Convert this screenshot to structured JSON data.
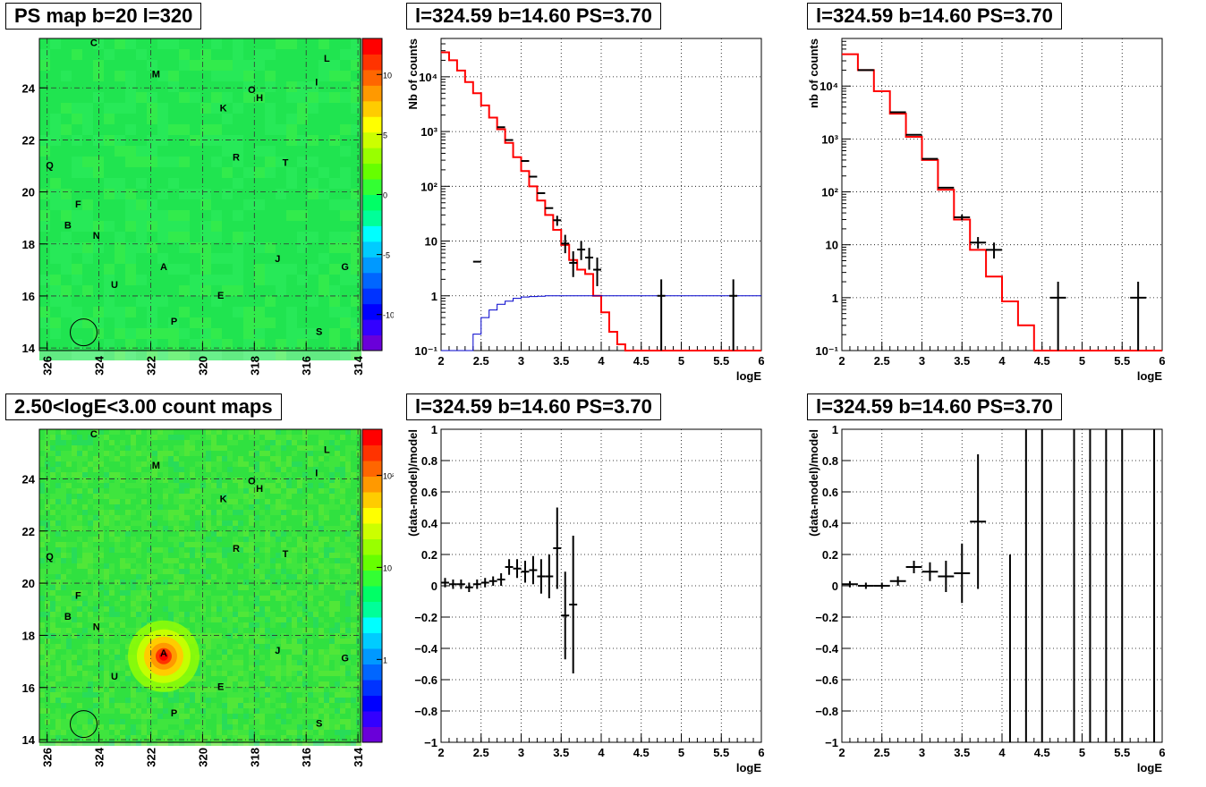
{
  "maps": [
    {
      "title": "PS map b=20 l=320",
      "type": "heatmap",
      "x_ticks": [
        "326",
        "324",
        "322",
        "320",
        "318",
        "316",
        "314"
      ],
      "y_ticks": [
        "14",
        "16",
        "18",
        "20",
        "22",
        "24"
      ],
      "colorbar_ticks": [
        {
          "label": "10",
          "value": 10
        },
        {
          "label": "5",
          "value": 5
        },
        {
          "label": "0",
          "value": 0
        },
        {
          "label": "-5",
          "value": -5
        },
        {
          "label": "-10",
          "value": -10
        }
      ],
      "colorbar_range": [
        -13,
        13
      ],
      "source_labels": [
        {
          "text": "C",
          "l": 324.2,
          "b": 25.6
        },
        {
          "text": "M",
          "l": 321.8,
          "b": 24.4
        },
        {
          "text": "L",
          "l": 315.2,
          "b": 25.0
        },
        {
          "text": "I",
          "l": 315.6,
          "b": 24.1
        },
        {
          "text": "O",
          "l": 318.1,
          "b": 23.8
        },
        {
          "text": "H",
          "l": 317.8,
          "b": 23.5
        },
        {
          "text": "K",
          "l": 319.2,
          "b": 23.1
        },
        {
          "text": "R",
          "l": 318.7,
          "b": 21.2
        },
        {
          "text": "T",
          "l": 316.8,
          "b": 21.0
        },
        {
          "text": "Q",
          "l": 325.9,
          "b": 20.9
        },
        {
          "text": "F",
          "l": 324.8,
          "b": 19.4
        },
        {
          "text": "B",
          "l": 325.2,
          "b": 18.6
        },
        {
          "text": "N",
          "l": 324.1,
          "b": 18.2
        },
        {
          "text": "J",
          "l": 317.1,
          "b": 17.3
        },
        {
          "text": "A",
          "l": 321.5,
          "b": 17.0
        },
        {
          "text": "G",
          "l": 314.5,
          "b": 17.0
        },
        {
          "text": "U",
          "l": 323.4,
          "b": 16.3
        },
        {
          "text": "E",
          "l": 319.3,
          "b": 15.9
        },
        {
          "text": "P",
          "l": 321.1,
          "b": 14.9
        },
        {
          "text": "S",
          "l": 315.5,
          "b": 14.5
        }
      ],
      "circle": {
        "l": 324.59,
        "b": 14.6
      },
      "hotspot": null
    },
    {
      "title": "2.50<logE<3.00 count maps",
      "type": "heatmap",
      "x_ticks": [
        "326",
        "324",
        "322",
        "320",
        "318",
        "316",
        "314"
      ],
      "y_ticks": [
        "14",
        "16",
        "18",
        "20",
        "22",
        "24"
      ],
      "colorbar_ticks": [
        {
          "label": "10²",
          "value": 2
        },
        {
          "label": "10",
          "value": 1
        },
        {
          "label": "1",
          "value": 0
        }
      ],
      "colorbar_range": [
        -0.9,
        2.5
      ],
      "source_labels": [
        {
          "text": "C",
          "l": 324.2,
          "b": 25.6
        },
        {
          "text": "M",
          "l": 321.8,
          "b": 24.4
        },
        {
          "text": "L",
          "l": 315.2,
          "b": 25.0
        },
        {
          "text": "I",
          "l": 315.6,
          "b": 24.1
        },
        {
          "text": "O",
          "l": 318.1,
          "b": 23.8
        },
        {
          "text": "H",
          "l": 317.8,
          "b": 23.5
        },
        {
          "text": "K",
          "l": 319.2,
          "b": 23.1
        },
        {
          "text": "R",
          "l": 318.7,
          "b": 21.2
        },
        {
          "text": "T",
          "l": 316.8,
          "b": 21.0
        },
        {
          "text": "Q",
          "l": 325.9,
          "b": 20.9
        },
        {
          "text": "F",
          "l": 324.8,
          "b": 19.4
        },
        {
          "text": "B",
          "l": 325.2,
          "b": 18.6
        },
        {
          "text": "N",
          "l": 324.1,
          "b": 18.2
        },
        {
          "text": "J",
          "l": 317.1,
          "b": 17.3
        },
        {
          "text": "A",
          "l": 321.5,
          "b": 17.2
        },
        {
          "text": "G",
          "l": 314.5,
          "b": 17.0
        },
        {
          "text": "U",
          "l": 323.4,
          "b": 16.3
        },
        {
          "text": "E",
          "l": 319.3,
          "b": 15.9
        },
        {
          "text": "P",
          "l": 321.1,
          "b": 14.9
        },
        {
          "text": "S",
          "l": 315.5,
          "b": 14.5
        }
      ],
      "circle": {
        "l": 324.59,
        "b": 14.6
      },
      "hotspot": {
        "l": 321.5,
        "b": 17.2
      }
    }
  ],
  "chart_data": [
    {
      "type": "line",
      "title": "l=324.59 b=14.60 PS=3.70",
      "xlabel": "logE",
      "ylabel": "Nb of counts",
      "log_y": true,
      "xlim": [
        2,
        6
      ],
      "ylim_exp": [
        -1,
        4.7
      ],
      "x_ticks": [
        "2",
        "2.5",
        "3",
        "3.5",
        "4",
        "4.5",
        "5",
        "5.5",
        "6"
      ],
      "y_ticks": [
        {
          "label": "10⁻¹",
          "value": 0.1
        },
        {
          "label": "1",
          "value": 1
        },
        {
          "label": "10",
          "value": 10
        },
        {
          "label": "10²",
          "value": 100
        },
        {
          "label": "10³",
          "value": 1000
        },
        {
          "label": "10⁴",
          "value": 10000
        }
      ],
      "series": [
        {
          "color": "#ff0000",
          "kind": "step",
          "edges": [
            2.0,
            2.1,
            2.2,
            2.3,
            2.4,
            2.5,
            2.6,
            2.7,
            2.8,
            2.9,
            3.0,
            3.1,
            3.2,
            3.3,
            3.4,
            3.5,
            3.6,
            3.7,
            3.8,
            3.9,
            4.0,
            4.1,
            4.2,
            4.3,
            6.0
          ],
          "values": [
            28000,
            20000,
            13000,
            8000,
            5000,
            3000,
            1800,
            1100,
            620,
            340,
            190,
            100,
            55,
            30,
            16,
            8.5,
            4.5,
            3.0,
            2.5,
            1.0,
            0.5,
            0.22,
            0.13,
            0.1
          ]
        },
        {
          "color": "#0000cc",
          "kind": "step",
          "edges": [
            2.0,
            2.2,
            2.3,
            2.4,
            2.5,
            2.6,
            2.7,
            2.8,
            2.9,
            3.0,
            3.1,
            3.2,
            3.3,
            6.0
          ],
          "values": [
            0.1,
            0.1,
            0.1,
            0.2,
            0.4,
            0.55,
            0.7,
            0.8,
            0.9,
            0.95,
            0.97,
            0.98,
            1.0
          ]
        }
      ],
      "points": [
        {
          "x": 2.45,
          "y": 4.2,
          "xerr": 0.05,
          "yerr_lo": 0,
          "yerr_hi": 0
        },
        {
          "x": 2.75,
          "y": 1200,
          "xerr": 0.05,
          "yerr_lo": 0,
          "yerr_hi": 0
        },
        {
          "x": 2.85,
          "y": 700,
          "xerr": 0.05,
          "yerr_lo": 0,
          "yerr_hi": 0
        },
        {
          "x": 3.05,
          "y": 290,
          "xerr": 0.05,
          "yerr_lo": 0,
          "yerr_hi": 0
        },
        {
          "x": 3.15,
          "y": 150,
          "xerr": 0.05,
          "yerr_lo": 0,
          "yerr_hi": 0
        },
        {
          "x": 3.25,
          "y": 75,
          "xerr": 0.05,
          "yerr_lo": 0,
          "yerr_hi": 0
        },
        {
          "x": 3.35,
          "y": 40,
          "xerr": 0.05,
          "yerr_lo": 0,
          "yerr_hi": 0
        },
        {
          "x": 3.45,
          "y": 24,
          "xerr": 0.05,
          "yerr_lo": 5,
          "yerr_hi": 5
        },
        {
          "x": 3.55,
          "y": 9,
          "xerr": 0.05,
          "yerr_lo": 3,
          "yerr_hi": 4
        },
        {
          "x": 3.65,
          "y": 4,
          "xerr": 0.05,
          "yerr_lo": 1.8,
          "yerr_hi": 2.5
        },
        {
          "x": 3.75,
          "y": 7,
          "xerr": 0.05,
          "yerr_lo": 2.5,
          "yerr_hi": 3
        },
        {
          "x": 3.85,
          "y": 5,
          "xerr": 0.05,
          "yerr_lo": 2,
          "yerr_hi": 2.5
        },
        {
          "x": 3.95,
          "y": 3,
          "xerr": 0.05,
          "yerr_lo": 1.5,
          "yerr_hi": 2
        },
        {
          "x": 4.75,
          "y": 1,
          "xerr": 0.05,
          "yerr_lo": 0.9,
          "yerr_hi": 1
        },
        {
          "x": 5.65,
          "y": 1,
          "xerr": 0.05,
          "yerr_lo": 0.9,
          "yerr_hi": 1
        }
      ]
    },
    {
      "type": "line",
      "title": "l=324.59 b=14.60 PS=3.70",
      "xlabel": "logE",
      "ylabel": "nb of counts",
      "log_y": true,
      "xlim": [
        2,
        6
      ],
      "ylim_exp": [
        -1,
        4.9
      ],
      "x_ticks": [
        "2",
        "2.5",
        "3",
        "3.5",
        "4",
        "4.5",
        "5",
        "5.5",
        "6"
      ],
      "y_ticks": [
        {
          "label": "10⁻¹",
          "value": 0.1
        },
        {
          "label": "1",
          "value": 1
        },
        {
          "label": "10",
          "value": 10
        },
        {
          "label": "10²",
          "value": 100
        },
        {
          "label": "10³",
          "value": 1000
        },
        {
          "label": "10⁴",
          "value": 10000
        }
      ],
      "series": [
        {
          "color": "#ff0000",
          "kind": "step",
          "edges": [
            2.0,
            2.2,
            2.4,
            2.6,
            2.8,
            3.0,
            3.2,
            3.4,
            3.6,
            3.8,
            4.0,
            4.2,
            4.4,
            6.0
          ],
          "values": [
            40000,
            20000,
            8000,
            3000,
            1100,
            400,
            110,
            30,
            8,
            2.5,
            0.85,
            0.3,
            0.1
          ]
        }
      ],
      "points": [
        {
          "x": 2.3,
          "y": 20000,
          "xerr": 0.1,
          "yerr_lo": 0,
          "yerr_hi": 0
        },
        {
          "x": 2.7,
          "y": 3200,
          "xerr": 0.1,
          "yerr_lo": 0,
          "yerr_hi": 0
        },
        {
          "x": 2.9,
          "y": 1200,
          "xerr": 0.1,
          "yerr_lo": 0,
          "yerr_hi": 0
        },
        {
          "x": 3.1,
          "y": 420,
          "xerr": 0.1,
          "yerr_lo": 0,
          "yerr_hi": 0
        },
        {
          "x": 3.3,
          "y": 120,
          "xerr": 0.1,
          "yerr_lo": 0,
          "yerr_hi": 0
        },
        {
          "x": 3.5,
          "y": 33,
          "xerr": 0.1,
          "yerr_lo": 4,
          "yerr_hi": 4
        },
        {
          "x": 3.7,
          "y": 11,
          "xerr": 0.1,
          "yerr_lo": 2.5,
          "yerr_hi": 3
        },
        {
          "x": 3.9,
          "y": 8,
          "xerr": 0.1,
          "yerr_lo": 2.5,
          "yerr_hi": 3
        },
        {
          "x": 4.7,
          "y": 1,
          "xerr": 0.1,
          "yerr_lo": 0.9,
          "yerr_hi": 1
        },
        {
          "x": 5.7,
          "y": 1,
          "xerr": 0.1,
          "yerr_lo": 0.9,
          "yerr_hi": 1
        }
      ]
    },
    {
      "type": "scatter",
      "title": "l=324.59 b=14.60 PS=3.70",
      "xlabel": "logE",
      "ylabel": "(data-model)/model",
      "log_y": false,
      "xlim": [
        2,
        6
      ],
      "ylim": [
        -1,
        1
      ],
      "x_ticks": [
        "2",
        "2.5",
        "3",
        "3.5",
        "4",
        "4.5",
        "5",
        "5.5",
        "6"
      ],
      "y_ticks_lin": [
        "1",
        "0.8",
        "0.6",
        "0.4",
        "0.2",
        "0",
        "−0.2",
        "−0.4",
        "−0.6",
        "−0.8",
        "−1"
      ],
      "points": [
        {
          "x": 2.05,
          "y": 0.02,
          "xerr": 0.05,
          "yerr": 0.03
        },
        {
          "x": 2.15,
          "y": 0.01,
          "xerr": 0.05,
          "yerr": 0.03
        },
        {
          "x": 2.25,
          "y": 0.01,
          "xerr": 0.05,
          "yerr": 0.03
        },
        {
          "x": 2.35,
          "y": -0.01,
          "xerr": 0.05,
          "yerr": 0.03
        },
        {
          "x": 2.45,
          "y": 0.01,
          "xerr": 0.05,
          "yerr": 0.03
        },
        {
          "x": 2.55,
          "y": 0.02,
          "xerr": 0.05,
          "yerr": 0.03
        },
        {
          "x": 2.65,
          "y": 0.03,
          "xerr": 0.05,
          "yerr": 0.03
        },
        {
          "x": 2.75,
          "y": 0.04,
          "xerr": 0.05,
          "yerr": 0.04
        },
        {
          "x": 2.85,
          "y": 0.12,
          "xerr": 0.05,
          "yerr": 0.05
        },
        {
          "x": 2.95,
          "y": 0.11,
          "xerr": 0.05,
          "yerr": 0.06
        },
        {
          "x": 3.05,
          "y": 0.09,
          "xerr": 0.05,
          "yerr": 0.07
        },
        {
          "x": 3.15,
          "y": 0.1,
          "xerr": 0.05,
          "yerr": 0.09
        },
        {
          "x": 3.25,
          "y": 0.06,
          "xerr": 0.05,
          "yerr": 0.11
        },
        {
          "x": 3.35,
          "y": 0.06,
          "xerr": 0.05,
          "yerr": 0.14
        },
        {
          "x": 3.45,
          "y": 0.24,
          "xerr": 0.05,
          "yerr": 0.26
        },
        {
          "x": 3.55,
          "y": -0.19,
          "xerr": 0.05,
          "yerr": 0.28
        },
        {
          "x": 3.65,
          "y": -0.12,
          "xerr": 0.05,
          "yerr": 0.44
        }
      ]
    },
    {
      "type": "scatter",
      "title": "l=324.59 b=14.60 PS=3.70",
      "xlabel": "logE",
      "ylabel": "(data-model)/model",
      "log_y": false,
      "xlim": [
        2,
        6
      ],
      "ylim": [
        -1,
        1
      ],
      "x_ticks": [
        "2",
        "2.5",
        "3",
        "3.5",
        "4",
        "4.5",
        "5",
        "5.5",
        "6"
      ],
      "y_ticks_lin": [
        "1",
        "0.8",
        "0.6",
        "0.4",
        "0.2",
        "0",
        "−0.2",
        "−0.4",
        "−0.6",
        "−0.8",
        "−1"
      ],
      "points": [
        {
          "x": 2.1,
          "y": 0.01,
          "xerr": 0.1,
          "yerr": 0.02
        },
        {
          "x": 2.3,
          "y": 0.0,
          "xerr": 0.1,
          "yerr": 0.02
        },
        {
          "x": 2.5,
          "y": 0.0,
          "xerr": 0.1,
          "yerr": 0.02
        },
        {
          "x": 2.7,
          "y": 0.03,
          "xerr": 0.1,
          "yerr": 0.03
        },
        {
          "x": 2.9,
          "y": 0.12,
          "xerr": 0.1,
          "yerr": 0.04
        },
        {
          "x": 3.1,
          "y": 0.09,
          "xerr": 0.1,
          "yerr": 0.06
        },
        {
          "x": 3.3,
          "y": 0.06,
          "xerr": 0.1,
          "yerr": 0.1
        },
        {
          "x": 3.5,
          "y": 0.08,
          "xerr": 0.1,
          "yerr": 0.19
        },
        {
          "x": 3.7,
          "y": 0.41,
          "xerr": 0.1,
          "yerr": 0.43
        },
        {
          "x": 4.1,
          "y": -1.0,
          "xerr": 0.0,
          "yerr": 1.2
        },
        {
          "x": 4.3,
          "y": 1.0,
          "xerr": 0.0,
          "yerr": 2.0
        },
        {
          "x": 4.5,
          "y": 1.0,
          "xerr": 0.0,
          "yerr": 2.0
        },
        {
          "x": 4.9,
          "y": 1.0,
          "xerr": 0.0,
          "yerr": 2.0
        },
        {
          "x": 5.1,
          "y": 1.0,
          "xerr": 0.0,
          "yerr": 2.0
        },
        {
          "x": 5.3,
          "y": 1.0,
          "xerr": 0.0,
          "yerr": 2.0
        },
        {
          "x": 5.5,
          "y": 1.0,
          "xerr": 0.0,
          "yerr": 2.0
        },
        {
          "x": 5.9,
          "y": 1.0,
          "xerr": 0.0,
          "yerr": 2.0
        }
      ]
    }
  ]
}
